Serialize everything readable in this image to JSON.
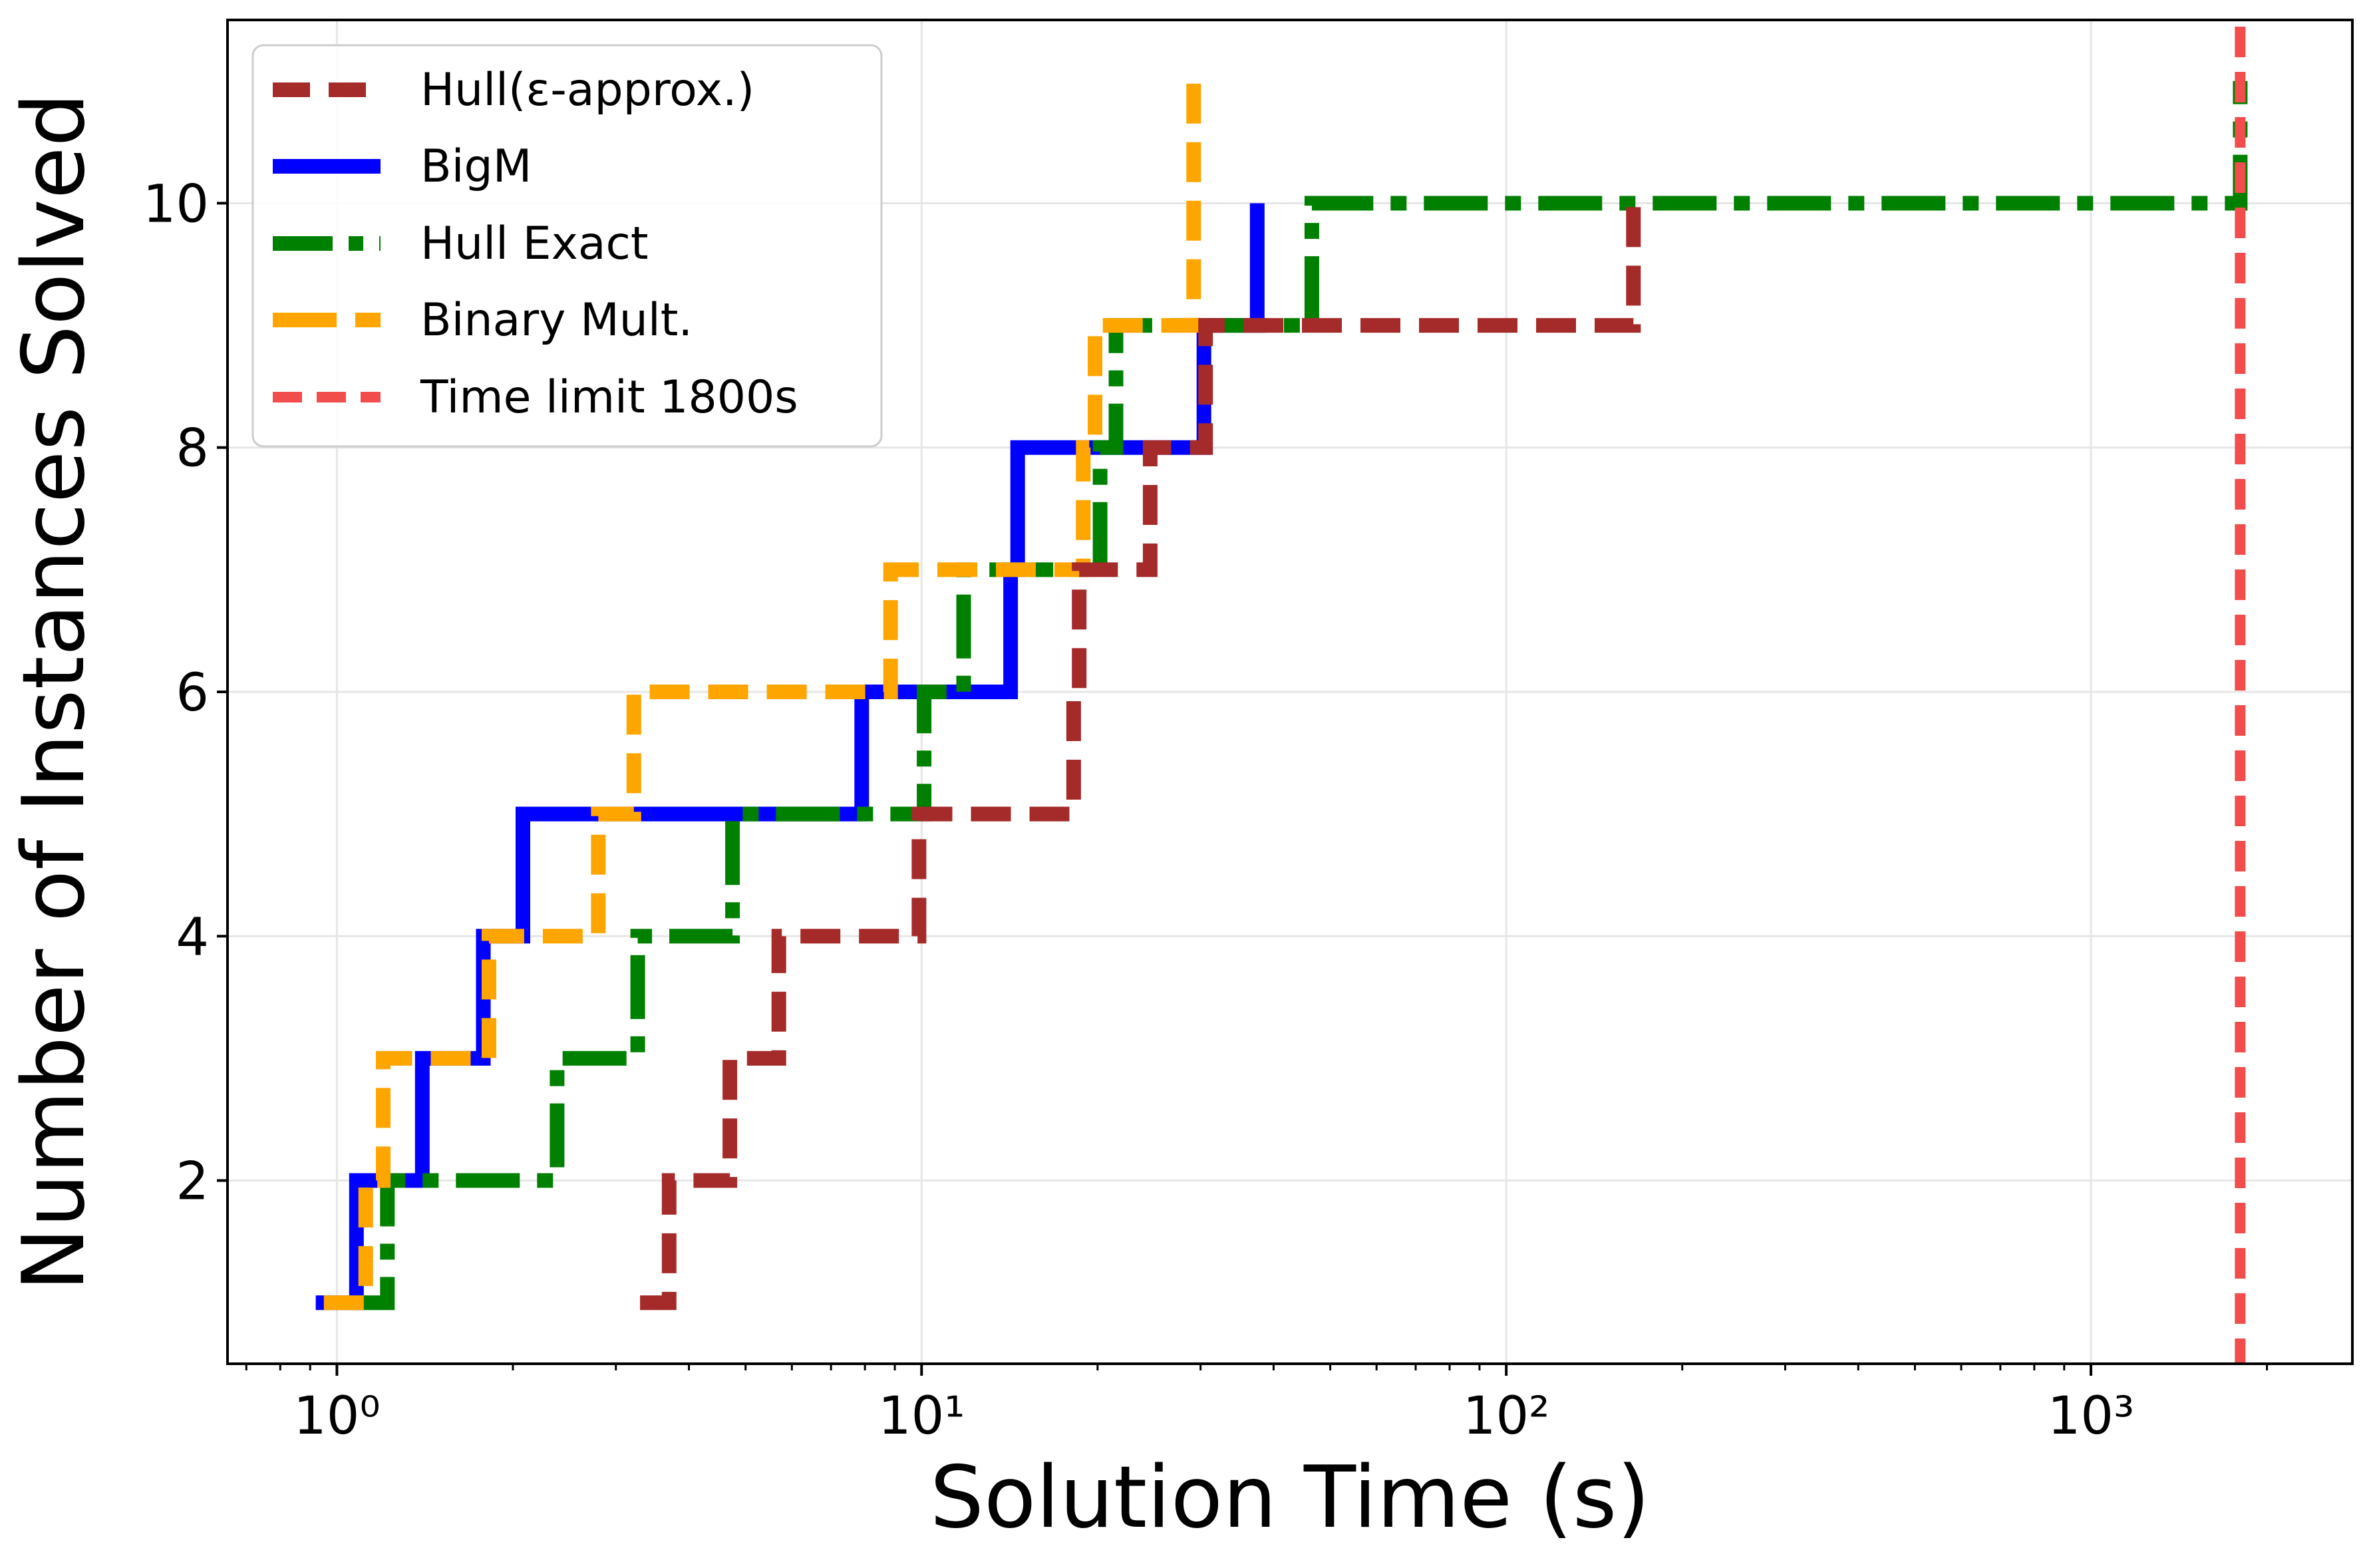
{
  "chart_data": {
    "type": "line",
    "subtype": "step",
    "xlabel": "Solution Time (s)",
    "ylabel": "Number of Instances Solved",
    "x_scale": "log",
    "xlim": [
      0.65,
      2800
    ],
    "ylim": [
      0.5,
      11.5
    ],
    "xticks": [
      {
        "value": 1,
        "label": "10⁰"
      },
      {
        "value": 10,
        "label": "10¹"
      },
      {
        "value": 100,
        "label": "10²"
      },
      {
        "value": 1000,
        "label": "10³"
      }
    ],
    "yticks": [
      2,
      4,
      6,
      8,
      10
    ],
    "grid": true,
    "legend_position": "top-left",
    "series": [
      {
        "name": "Hull(ε-approx.)",
        "color": "#a52a2a",
        "dash": "dashed",
        "x": [
          3.3,
          3.7,
          4.7,
          5.7,
          9.9,
          18.2,
          18.6,
          24.6,
          30.6,
          165
        ],
        "y": [
          1,
          2,
          3,
          4,
          5,
          6,
          7,
          8,
          9,
          10
        ]
      },
      {
        "name": "BigM",
        "color": "#0000ff",
        "dash": "solid",
        "x": [
          0.92,
          1.08,
          1.4,
          1.78,
          2.08,
          7.9,
          14.2,
          14.6,
          30.4,
          37.5
        ],
        "y": [
          1,
          2,
          3,
          4,
          5,
          6,
          7,
          8,
          9,
          10
        ]
      },
      {
        "name": "Hull Exact",
        "color": "#008000",
        "dash": "dashdot",
        "x": [
          1.05,
          1.22,
          2.38,
          3.27,
          4.75,
          10.1,
          11.8,
          20.2,
          21.5,
          46.5,
          1800
        ],
        "y": [
          1,
          2,
          3,
          4,
          5,
          6,
          7,
          8,
          9,
          10,
          11
        ]
      },
      {
        "name": "Binary Mult.",
        "color": "#ffa500",
        "dash": "dashed",
        "x": [
          0.95,
          1.12,
          1.2,
          1.82,
          2.8,
          3.22,
          8.85,
          18.9,
          19.8,
          29.2
        ],
        "y": [
          1,
          2,
          3,
          4,
          5,
          6,
          7,
          8,
          9,
          10
        ],
        "end_x": 29.2,
        "end_y": 11
      }
    ],
    "vlines": [
      {
        "name": "Time limit 1800s",
        "x": 1800,
        "color": "#f24d4d",
        "dash": "dashed"
      }
    ]
  }
}
